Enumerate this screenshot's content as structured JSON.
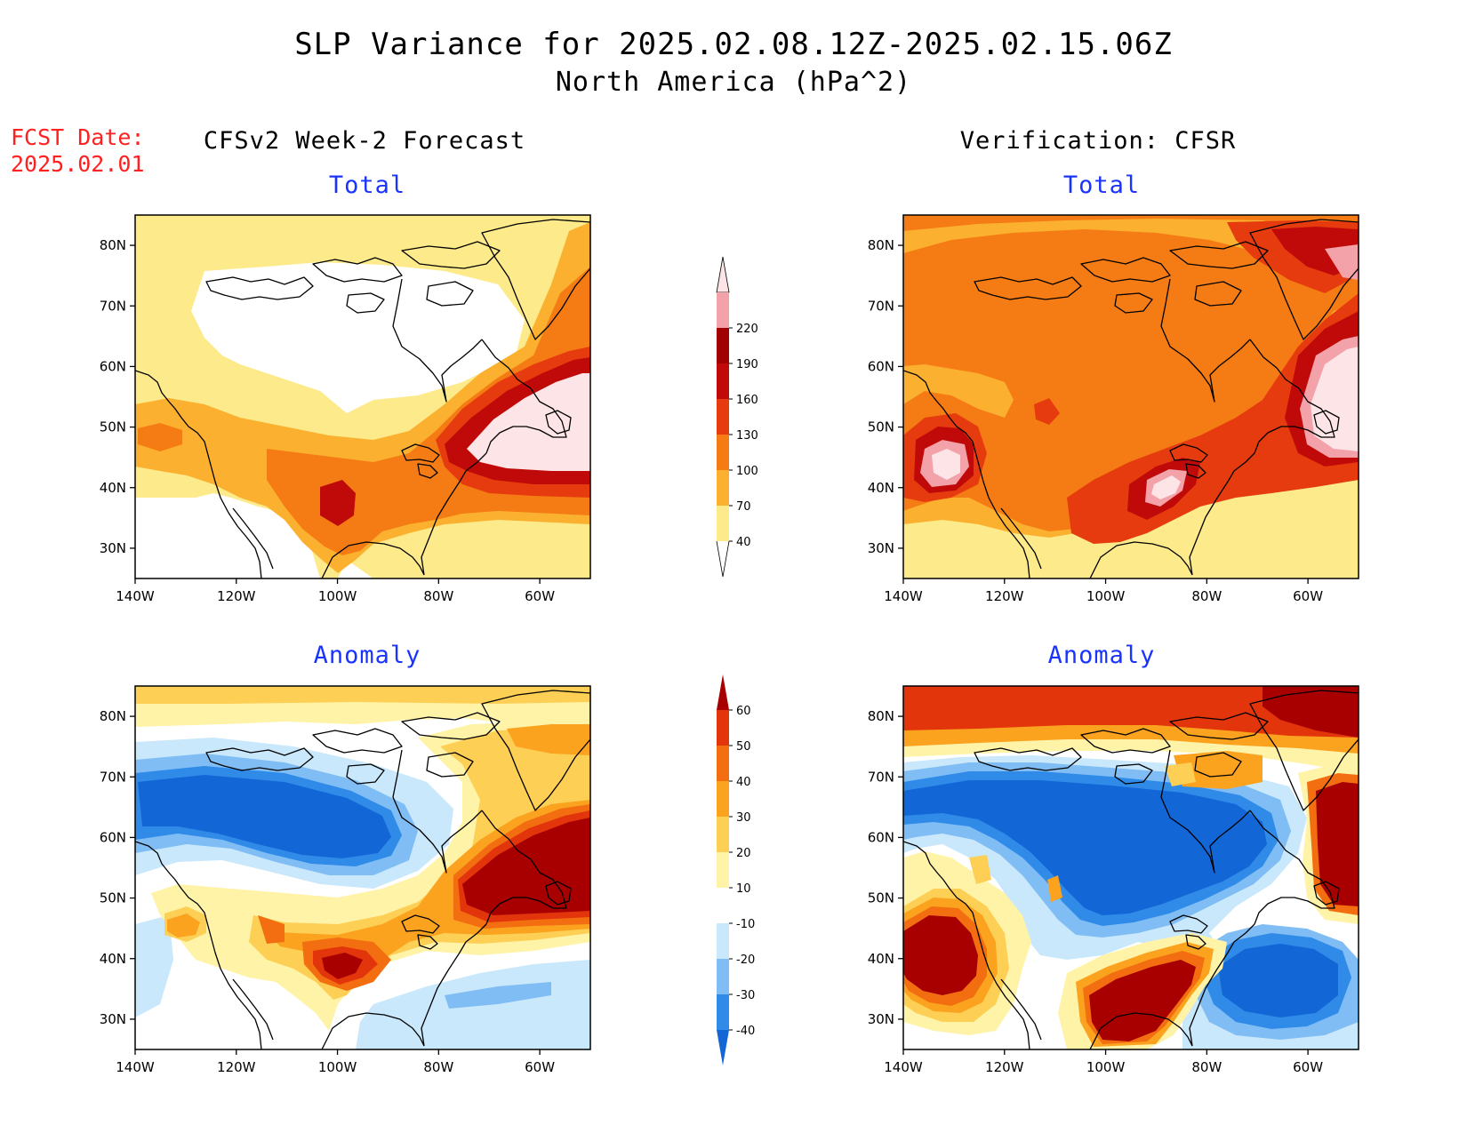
{
  "title": {
    "line1": "SLP Variance for 2025.02.08.12Z-2025.02.15.06Z",
    "line2": "North America (hPa^2)"
  },
  "fcst": {
    "label": "FCST Date:",
    "date": "2025.02.01"
  },
  "columns": {
    "left": "CFSv2 Week-2 Forecast",
    "right": "Verification: CFSR"
  },
  "panels": {
    "top_left": "Total",
    "top_right": "Total",
    "bottom_left": "Anomaly",
    "bottom_right": "Anomaly"
  },
  "axes": {
    "lon_labels": [
      "140W",
      "120W",
      "100W",
      "80W",
      "60W"
    ],
    "lat_labels": [
      "80N",
      "70N",
      "60N",
      "50N",
      "40N",
      "30N"
    ]
  },
  "colorbars": {
    "total": {
      "levels": [
        "40",
        "70",
        "100",
        "130",
        "160",
        "190",
        "220"
      ],
      "colors": [
        "#fdea8a",
        "#fbb02f",
        "#f57c14",
        "#e63b0e",
        "#c00a0a",
        "#a00000",
        "#f2a2a8",
        "#fde4e6"
      ]
    },
    "anomaly": {
      "levels": [
        "-40",
        "-30",
        "-20",
        "-10",
        "10",
        "20",
        "30",
        "40",
        "50",
        "60"
      ],
      "colors": [
        "#1366d6",
        "#2f8ae8",
        "#7fbdf4",
        "#c9e8fb",
        "#ffffff",
        "#fff3a8",
        "#fdcf55",
        "#fba21f",
        "#f36e10",
        "#e2350c",
        "#a80000"
      ]
    }
  },
  "palette": {
    "total": {
      "white": "#ffffff",
      "c40": "#fdea8a",
      "c70": "#fbb02f",
      "c100": "#f57c14",
      "c130": "#e63b0e",
      "c160": "#c00a0a",
      "c190": "#a00000",
      "c220": "#fde4e6"
    },
    "anomaly": {
      "n40": "#1366d6",
      "n30": "#2f8ae8",
      "n20": "#7fbdf4",
      "n10": "#c9e8fb",
      "p10": "#fff3a8",
      "p20": "#fdcf55",
      "p30": "#fba21f",
      "p40": "#f36e10",
      "p50": "#e2350c",
      "p60": "#a80000"
    }
  }
}
